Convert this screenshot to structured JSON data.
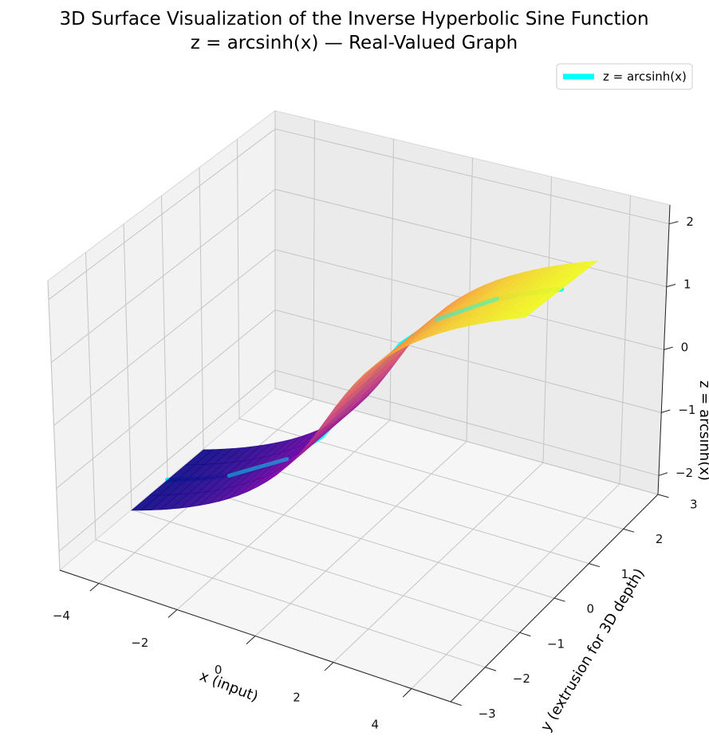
{
  "chart_data": {
    "type": "surface",
    "function": "z = arcsinh(x)",
    "title": "3D Surface Visualization of the Inverse Hyperbolic Sine Function",
    "subtitle": "z = arcsinh(x) — Real-Valued Graph",
    "xlabel": "x (input)",
    "ylabel": "y (extrusion for 3D depth)",
    "zlabel": "z = arcsinh(x)",
    "xlim": [
      -5,
      5
    ],
    "ylim": [
      -3,
      3
    ],
    "zlim": [
      -2.3,
      2.3
    ],
    "x_ticks": [
      -4,
      -2,
      0,
      2,
      4
    ],
    "y_ticks": [
      -3,
      -2,
      -1,
      0,
      1,
      2,
      3
    ],
    "z_ticks": [
      -2,
      -1,
      0,
      1,
      2
    ],
    "x_tick_labels": [
      "−4",
      "−2",
      "0",
      "2",
      "4"
    ],
    "y_tick_labels": [
      "−3",
      "−2",
      "−1",
      "0",
      "1",
      "2",
      "3"
    ],
    "z_tick_labels": [
      "−2",
      "−1",
      "0",
      "1",
      "2"
    ],
    "surface": {
      "x_range": [
        -5,
        5
      ],
      "y_range": [
        -1,
        1
      ],
      "colormap": "plasma"
    },
    "curve": {
      "name": "z = arcsinh(x)",
      "color": "#00ffff",
      "y": 0,
      "x": [
        -5,
        -4,
        -3,
        -2,
        -1,
        0,
        1,
        2,
        3,
        4,
        5
      ],
      "z": [
        -2.312,
        -2.095,
        -1.818,
        -1.444,
        -0.881,
        0,
        0.881,
        1.444,
        1.818,
        2.095,
        2.312
      ]
    },
    "legend": {
      "position": "top-right",
      "entries": [
        {
          "label": "z = arcsinh(x)",
          "color": "#00ffff"
        }
      ]
    },
    "grid": true
  }
}
